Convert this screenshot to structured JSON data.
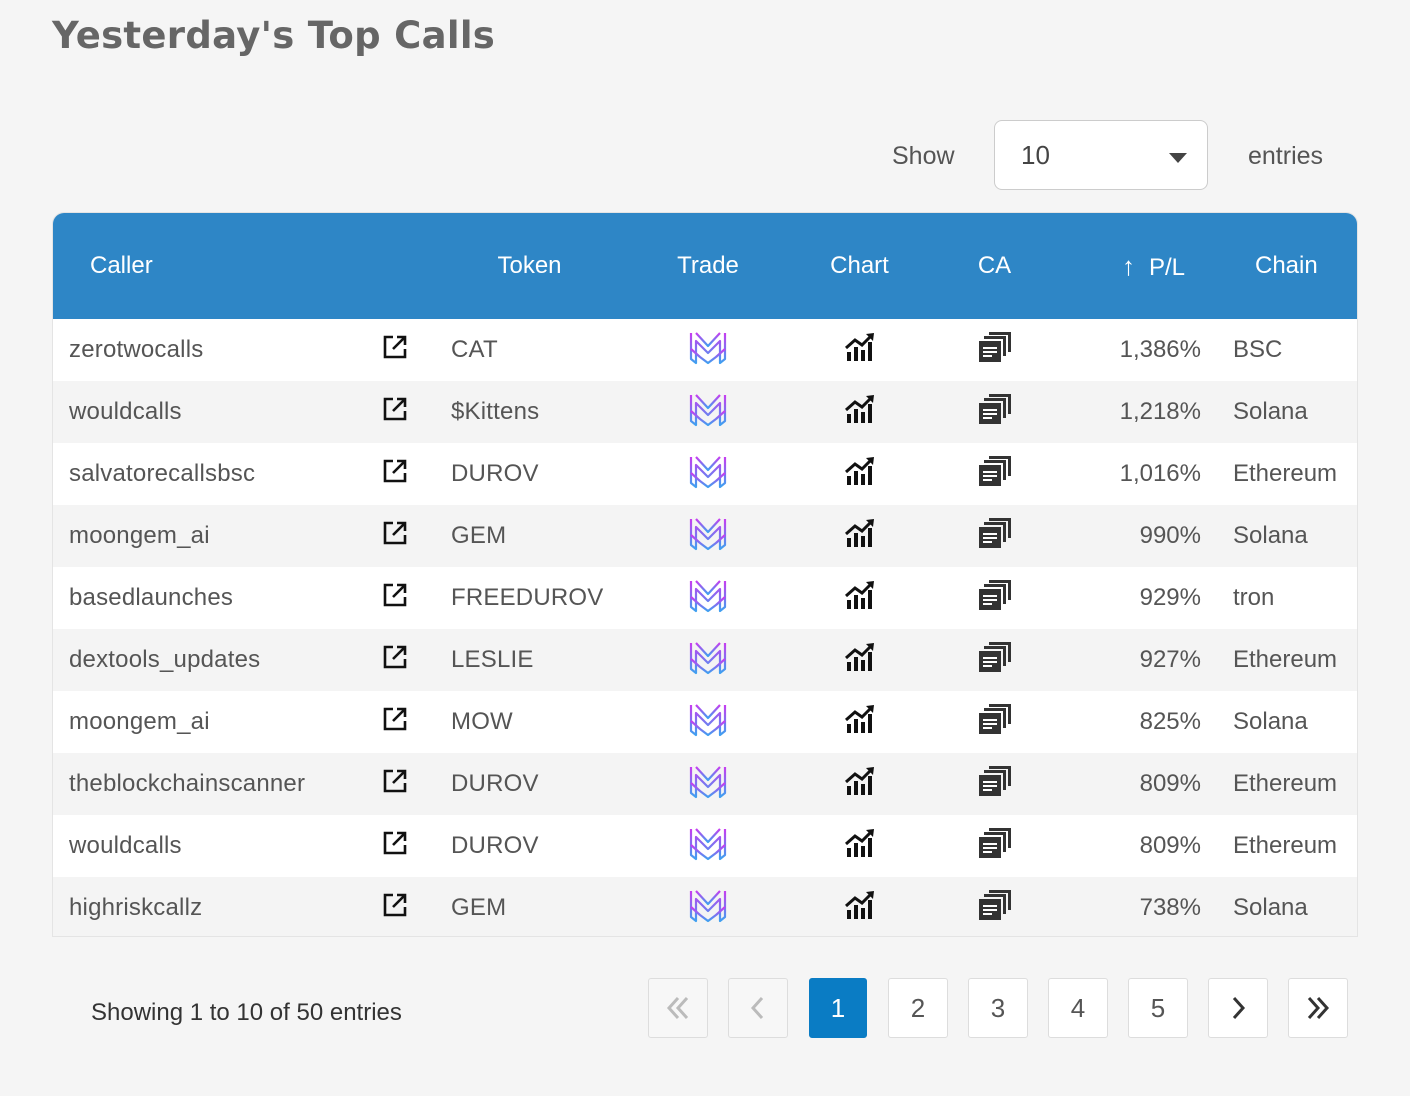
{
  "page": {
    "title": "Yesterday's Top Calls"
  },
  "length": {
    "show_label": "Show",
    "selected": "10",
    "entries_label": "entries"
  },
  "table": {
    "headers": {
      "caller": "Caller",
      "token": "Token",
      "trade": "Trade",
      "chart": "Chart",
      "ca": "CA",
      "pl": "P/L",
      "chain": "Chain"
    },
    "sort_icon": "arrow-up-icon",
    "row_icons": {
      "link": "external-link-icon",
      "trade": "trade-logo-icon",
      "chart": "chart-icon",
      "ca": "copy-icon"
    },
    "rows": [
      {
        "caller": "zerotwocalls",
        "token": "CAT",
        "pl": "1,386%",
        "chain": "BSC"
      },
      {
        "caller": "wouldcalls",
        "token": "$Kittens",
        "pl": "1,218%",
        "chain": "Solana"
      },
      {
        "caller": "salvatorecallsbsc",
        "token": "DUROV",
        "pl": "1,016%",
        "chain": "Ethereum"
      },
      {
        "caller": "moongem_ai",
        "token": "GEM",
        "pl": "990%",
        "chain": "Solana"
      },
      {
        "caller": "basedlaunches",
        "token": "FREEDUROV",
        "pl": "929%",
        "chain": "tron"
      },
      {
        "caller": "dextools_updates",
        "token": "LESLIE",
        "pl": "927%",
        "chain": "Ethereum"
      },
      {
        "caller": "moongem_ai",
        "token": "MOW",
        "pl": "825%",
        "chain": "Solana"
      },
      {
        "caller": "theblockchainscanner",
        "token": "DUROV",
        "pl": "809%",
        "chain": "Ethereum"
      },
      {
        "caller": "wouldcalls",
        "token": "DUROV",
        "pl": "809%",
        "chain": "Ethereum"
      },
      {
        "caller": "highriskcallz",
        "token": "GEM",
        "pl": "738%",
        "chain": "Solana"
      }
    ]
  },
  "footer": {
    "info": "Showing 1 to 10 of 50 entries",
    "pages": [
      "1",
      "2",
      "3",
      "4",
      "5"
    ],
    "current_page": "1",
    "first_icon": "double-chevron-left-icon",
    "prev_icon": "chevron-left-icon",
    "next_icon": "chevron-right-icon",
    "last_icon": "double-chevron-right-icon"
  },
  "colors": {
    "header_bg": "#2e86c6",
    "active_page": "#0a7cc4",
    "trade_logo_gradient": [
      "#c83cf0",
      "#3fa0f0"
    ]
  }
}
